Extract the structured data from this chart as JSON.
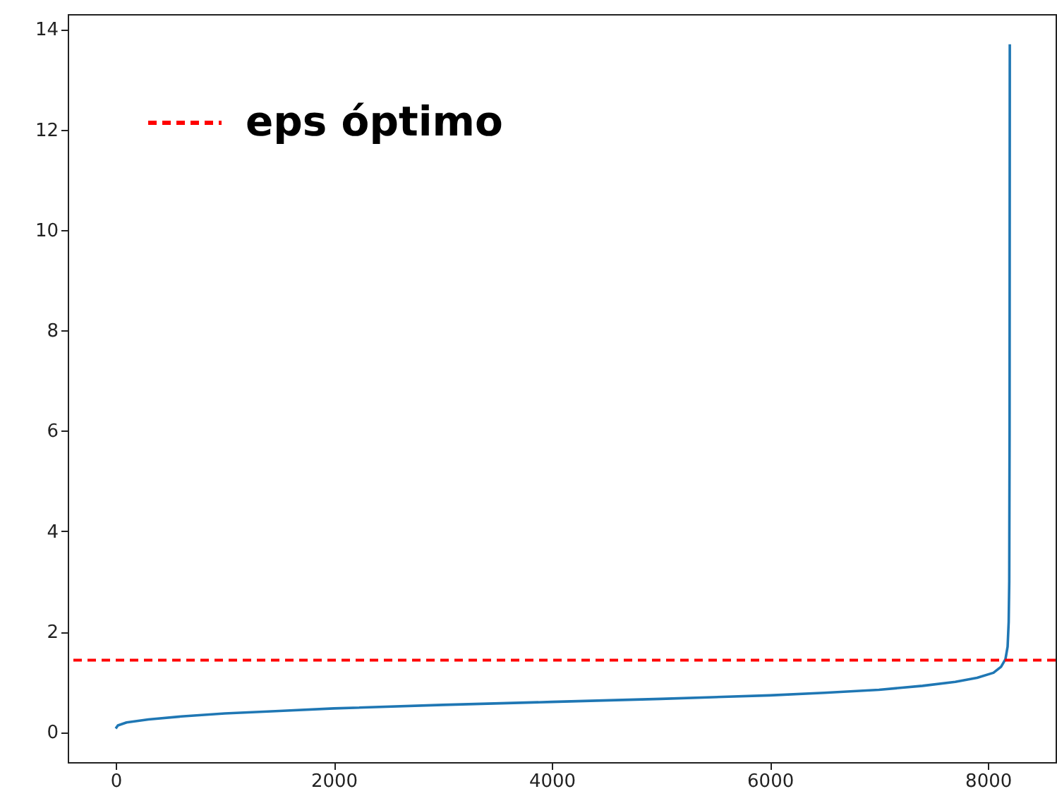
{
  "chart_data": {
    "type": "line",
    "legend": "top left",
    "grid": false,
    "x": [
      0,
      20,
      100,
      300,
      600,
      1000,
      1500,
      2000,
      3000,
      4000,
      5000,
      6000,
      6500,
      7000,
      7400,
      7700,
      7900,
      8050,
      8120,
      8160,
      8180,
      8190,
      8195,
      8198,
      8200
    ],
    "series": [
      {
        "color": "#1f77b4",
        "values": [
          0.07,
          0.13,
          0.19,
          0.25,
          0.31,
          0.37,
          0.42,
          0.47,
          0.54,
          0.6,
          0.66,
          0.73,
          0.78,
          0.84,
          0.92,
          1.0,
          1.08,
          1.18,
          1.3,
          1.45,
          1.7,
          2.2,
          3,
          6,
          13.7
        ]
      }
    ],
    "xlim": [
      -440,
      8620
    ],
    "ylim": [
      -0.6,
      14.3
    ],
    "xticks": [
      0,
      2000,
      4000,
      6000,
      8000
    ],
    "yticks": [
      0,
      2,
      4,
      6,
      8,
      10,
      12,
      14
    ],
    "ref_lines": [
      {
        "axis": "y",
        "value": 1.43,
        "label": "eps óptimo",
        "color": "#ff0000",
        "line_style": "dashed"
      }
    ]
  }
}
